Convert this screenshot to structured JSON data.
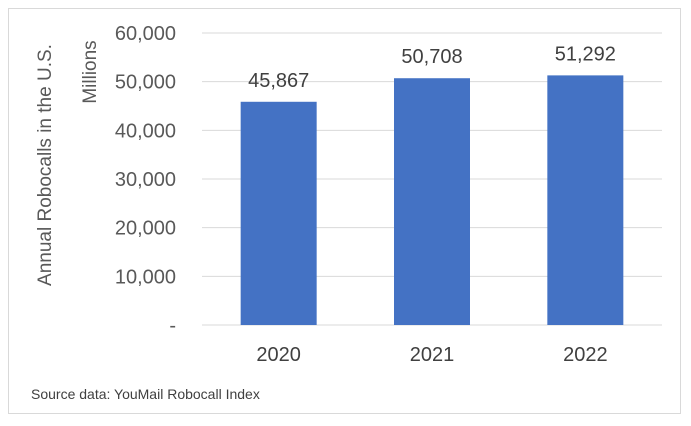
{
  "chart_data": {
    "type": "bar",
    "categories": [
      "2020",
      "2021",
      "2022"
    ],
    "values": [
      45867,
      50708,
      51292
    ],
    "data_labels": [
      "45,867",
      "50,708",
      "51,292"
    ],
    "ylabel": "Annual Robocalls in the U.S.",
    "yunit": "Millions",
    "ylim": [
      0,
      60000
    ],
    "yticks": [
      0,
      10000,
      20000,
      30000,
      40000,
      50000,
      60000
    ],
    "ytick_labels": [
      "-",
      "10,000",
      "20,000",
      "30,000",
      "40,000",
      "50,000",
      "60,000"
    ],
    "grid": true,
    "bar_color": "#4472C4",
    "grid_color": "#d9d9d9"
  },
  "source": "Source data: YouMail Robocall Index"
}
